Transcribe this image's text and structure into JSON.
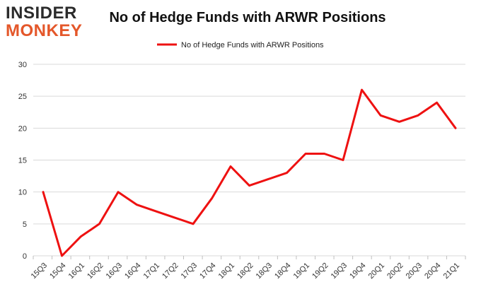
{
  "logo": {
    "line1": "INSIDER",
    "line2": "MONKEY"
  },
  "chart_data": {
    "type": "line",
    "title": "No of Hedge Funds with ARWR Positions",
    "xlabel": "",
    "ylabel": "",
    "categories": [
      "15Q3",
      "15Q4",
      "16Q1",
      "16Q2",
      "16Q3",
      "16Q4",
      "17Q1",
      "17Q2",
      "17Q3",
      "17Q4",
      "18Q1",
      "18Q2",
      "18Q3",
      "18Q4",
      "19Q1",
      "19Q2",
      "19Q3",
      "19Q4",
      "20Q1",
      "20Q2",
      "20Q3",
      "20Q4",
      "21Q1"
    ],
    "series": [
      {
        "name": "No of Hedge Funds with ARWR Positions",
        "color": "#ee1111",
        "values": [
          10,
          0,
          3,
          5,
          10,
          8,
          7,
          6,
          5,
          9,
          14,
          11,
          12,
          13,
          16,
          16,
          15,
          26,
          22,
          21,
          22,
          24,
          20
        ]
      }
    ],
    "ylim": [
      0,
      30
    ],
    "yticks": [
      0,
      5,
      10,
      15,
      20,
      25,
      30
    ],
    "grid": true,
    "legend_position": "top-center"
  }
}
